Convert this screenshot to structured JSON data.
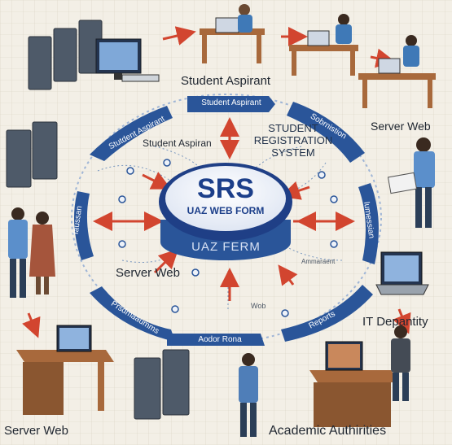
{
  "labels": {
    "student_aspirant_top": "Student Aspirant",
    "server_web_right": "Server Web",
    "student_aspirant_inner": "Student Aspiran",
    "server_web_left": "Server Web",
    "it_department": "IT Depantity",
    "server_web_bottom": "Server Web",
    "academic_authorities": "Academic Authirities"
  },
  "center": {
    "title_line1": "STUDENT",
    "title_line2": "REGISTRATION",
    "title_line3": "SYSTEM",
    "acronym": "SRS",
    "subtitle": "UAZ WEB FORM",
    "base_text": "UAZ FERM"
  },
  "ring": {
    "top_pill": "Student Aspirant",
    "top_right_pill": "Sobrnistion",
    "top_left_pill": "Stutdent Aspirant",
    "right_pill": "Iumessian",
    "left_pill": "Iaussan",
    "bottom_left_pill": "Prsdmaaumms",
    "bottom_pill": "Aodor Rona",
    "bottom_right_pill": "Reports",
    "inner_left": "Student Aspiran",
    "inner_right": "Ammaraent",
    "inner_bottom": "Wob"
  },
  "colors": {
    "background": "#f3efe6",
    "ring_blue": "#2a5599",
    "ring_dark": "#1b3a73",
    "arrow_red": "#d2452f",
    "center_fill": "#eef2f9",
    "center_rim": "#1f3f86"
  }
}
